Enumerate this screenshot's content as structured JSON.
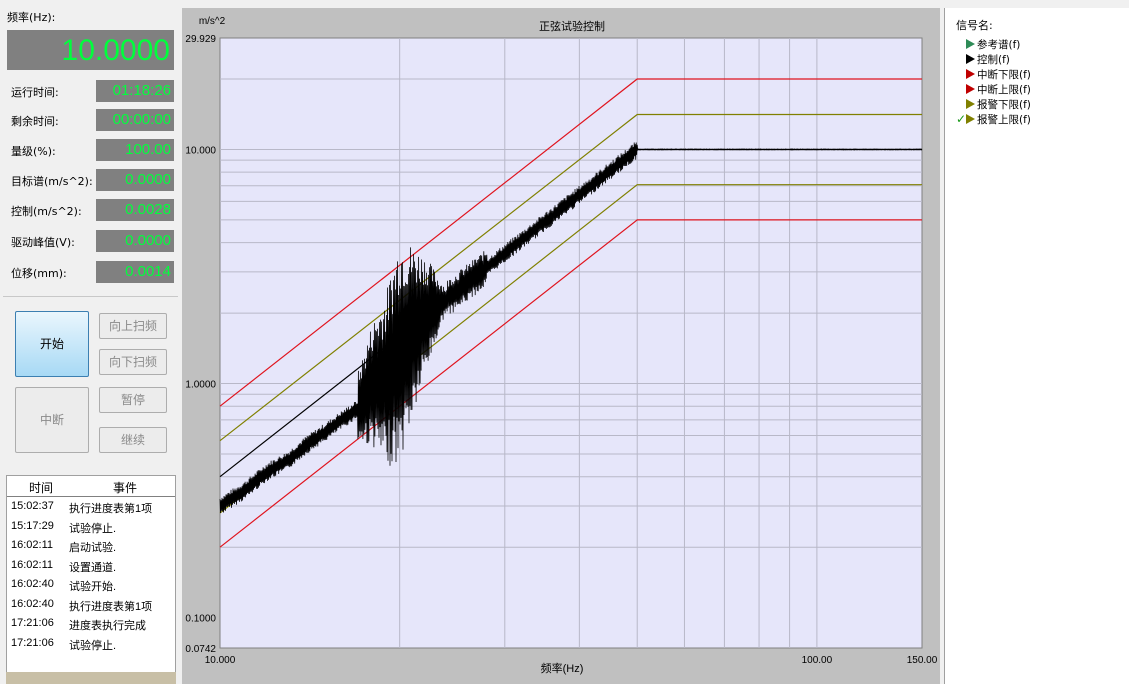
{
  "panel": {
    "freq_label": "频率(Hz):",
    "freq_value": "10.0000",
    "params": [
      {
        "label": "运行时间:",
        "value": "01:18:26"
      },
      {
        "label": "剩余时间:",
        "value": "00:00:00"
      },
      {
        "label": "量级(%):",
        "value": "100.00"
      },
      {
        "label": "目标谱(m/s^2):",
        "value": "0.0000"
      },
      {
        "label": "控制(m/s^2):",
        "value": "0.0028"
      },
      {
        "label": "驱动峰值(V):",
        "value": "0.0000"
      },
      {
        "label": "位移(mm):",
        "value": "0.0014"
      }
    ]
  },
  "controls": {
    "start": "开始",
    "sweep_up": "向上扫频",
    "sweep_down": "向下扫频",
    "abort": "中断",
    "pause": "暂停",
    "resume": "继续"
  },
  "events": {
    "col_time": "时间",
    "col_event": "事件",
    "rows": [
      {
        "time": "15:02:37",
        "event": "执行进度表第1项"
      },
      {
        "time": "15:17:29",
        "event": "试验停止."
      },
      {
        "time": "16:02:11",
        "event": "启动试验."
      },
      {
        "time": "16:02:11",
        "event": "设置通道."
      },
      {
        "time": "16:02:40",
        "event": "试验开始."
      },
      {
        "time": "16:02:40",
        "event": "执行进度表第1项"
      },
      {
        "time": "17:21:06",
        "event": "进度表执行完成"
      },
      {
        "time": "17:21:06",
        "event": "试验停止."
      }
    ]
  },
  "chart": {
    "title": "正弦试验控制",
    "y_unit": "m/s^2",
    "x_label": "频率(Hz)",
    "y_ticks": [
      "29.929",
      "10.000",
      "1.0000",
      "0.1000",
      "0.0742"
    ],
    "x_ticks": [
      "10.000",
      "100.00",
      "150.00"
    ],
    "colors": {
      "plot_bg": "#e6e6fa",
      "abort_limit": "#e0141e",
      "alarm_limit": "#808000",
      "reference": "#000000",
      "control": "#000000"
    }
  },
  "chart_data": {
    "type": "line",
    "title": "正弦试验控制",
    "xlabel": "频率(Hz)",
    "ylabel": "m/s^2",
    "x_scale": "log",
    "y_scale": "log",
    "xlim": [
      10,
      150
    ],
    "ylim": [
      0.0742,
      29.929
    ],
    "series": [
      {
        "name": "参考谱(f)",
        "x": [
          10,
          50,
          150
        ],
        "y": [
          0.4,
          10,
          10
        ]
      },
      {
        "name": "中断下限(f)",
        "x": [
          10,
          50,
          150
        ],
        "y": [
          0.2,
          5,
          5
        ]
      },
      {
        "name": "中断上限(f)",
        "x": [
          10,
          50,
          150
        ],
        "y": [
          0.8,
          20,
          20
        ]
      },
      {
        "name": "报警下限(f)",
        "x": [
          10,
          50,
          150
        ],
        "y": [
          0.28,
          7.07,
          7.07
        ]
      },
      {
        "name": "报警上限(f)",
        "x": [
          10,
          50,
          150
        ],
        "y": [
          0.57,
          14.1,
          14.1
        ]
      },
      {
        "name": "控制(f)",
        "x": [
          10,
          11,
          12,
          13,
          14,
          15,
          16,
          17,
          18,
          19,
          20,
          22,
          25,
          30,
          35,
          40,
          45,
          50,
          70,
          100,
          150
        ],
        "y": [
          0.3,
          0.35,
          0.42,
          0.47,
          0.55,
          0.62,
          0.7,
          0.78,
          1.0,
          1.05,
          1.4,
          1.95,
          2.5,
          3.6,
          4.9,
          6.4,
          8.1,
          10,
          10,
          10,
          10
        ]
      }
    ],
    "legend": {
      "title": "信号名:",
      "items": [
        {
          "label": "参考谱(f)",
          "color": "#2e8b57",
          "checked": false
        },
        {
          "label": "控制(f)",
          "color": "#000000",
          "checked": false
        },
        {
          "label": "中断下限(f)",
          "color": "#c00000",
          "checked": false
        },
        {
          "label": "中断上限(f)",
          "color": "#c00000",
          "checked": false
        },
        {
          "label": "报警下限(f)",
          "color": "#808000",
          "checked": false
        },
        {
          "label": "报警上限(f)",
          "color": "#808000",
          "checked": true
        }
      ]
    }
  }
}
